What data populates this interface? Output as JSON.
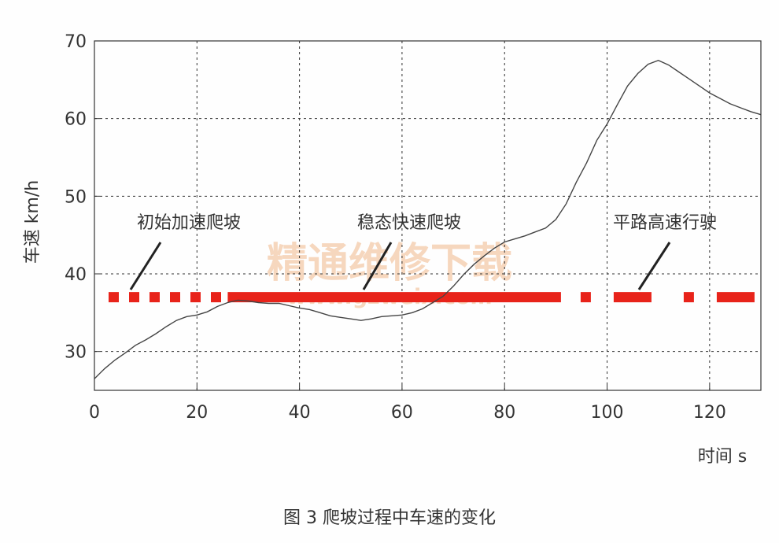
{
  "chart_data": {
    "type": "line",
    "ylabel": "车速 km/h",
    "xlabel": "时间 s",
    "xlim": [
      0,
      130
    ],
    "ylim": [
      25,
      70
    ],
    "xticks": [
      0,
      20,
      40,
      60,
      80,
      100,
      120
    ],
    "yticks": [
      30,
      40,
      50,
      60,
      70
    ],
    "grid": true,
    "series": [
      {
        "line_color": "#444444",
        "x": [
          0,
          2,
          4,
          6,
          8,
          10,
          12,
          14,
          16,
          18,
          20,
          22,
          24,
          26,
          28,
          30,
          32,
          34,
          36,
          38,
          40,
          42,
          44,
          46,
          48,
          50,
          52,
          54,
          56,
          58,
          60,
          62,
          64,
          66,
          68,
          70,
          72,
          74,
          76,
          78,
          80,
          82,
          84,
          86,
          88,
          90,
          92,
          94,
          96,
          98,
          100,
          102,
          104,
          106,
          108,
          110,
          112,
          114,
          116,
          118,
          120,
          122,
          124,
          126,
          128,
          130
        ],
        "y": [
          26.5,
          27.8,
          28.9,
          29.8,
          30.8,
          31.5,
          32.3,
          33.2,
          34.0,
          34.5,
          34.7,
          35.1,
          35.8,
          36.3,
          36.6,
          36.5,
          36.3,
          36.2,
          36.2,
          35.9,
          35.6,
          35.4,
          35.0,
          34.6,
          34.4,
          34.2,
          34.0,
          34.2,
          34.5,
          34.6,
          34.7,
          35.0,
          35.5,
          36.3,
          37.1,
          38.4,
          39.9,
          41.2,
          42.3,
          43.3,
          44.1,
          44.5,
          44.9,
          45.4,
          45.9,
          47.0,
          49.0,
          51.8,
          54.3,
          57.2,
          59.3,
          61.8,
          64.2,
          65.8,
          67.0,
          67.5,
          66.9,
          66.0,
          65.1,
          64.2,
          63.3,
          62.6,
          61.9,
          61.4,
          60.9,
          60.5
        ]
      }
    ],
    "phases": [
      {
        "label": "初始加速爬坡",
        "range": [
          0,
          26
        ],
        "style": "dotted"
      },
      {
        "label": "稳态快速爬坡",
        "range": [
          26,
          91
        ],
        "style": "solid"
      },
      {
        "label": "平路高速行驶",
        "range": [
          91,
          130
        ],
        "style": "dashed"
      }
    ],
    "phase_bar_level": 37,
    "phase_bar_color": "#e8231a",
    "watermark": [
      "精通维修下载",
      "www.gzweix.com"
    ]
  },
  "caption": "图 3   爬坡过程中车速的变化"
}
